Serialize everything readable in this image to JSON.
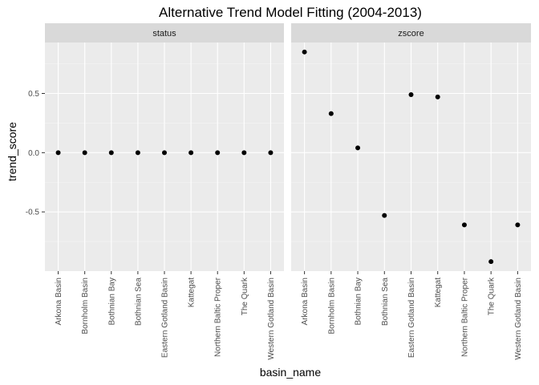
{
  "chart_data": {
    "type": "scatter",
    "title": "Alternative Trend Model Fitting (2004-2013)",
    "xlabel": "basin_name",
    "ylabel": "trend_score",
    "categories": [
      "Arkona Basin",
      "Bornholm Basin",
      "Bothnian Bay",
      "Bothnian Sea",
      "Eastern Gotland Basin",
      "Kattegat",
      "Northern Baltic Proper",
      "The Quark",
      "Western Gotland Basin"
    ],
    "ylim": [
      -1.0,
      0.93
    ],
    "yticks": [
      -0.5,
      0.0,
      0.5
    ],
    "ytick_labels": [
      "-0.5",
      "0.0",
      "0.5"
    ],
    "grid": true,
    "facets": [
      {
        "name": "status",
        "values": [
          0,
          0,
          0,
          0,
          0,
          0,
          0,
          0,
          0
        ]
      },
      {
        "name": "zscore",
        "values": [
          0.85,
          0.33,
          0.04,
          -0.53,
          0.49,
          0.47,
          -0.61,
          -0.92,
          -0.61
        ]
      }
    ],
    "colors": {
      "panel_bg": "#ebebeb",
      "strip_bg": "#d9d9d9",
      "grid_major": "#ffffff",
      "grid_minor": "#f5f5f5",
      "point": "#000000"
    }
  }
}
